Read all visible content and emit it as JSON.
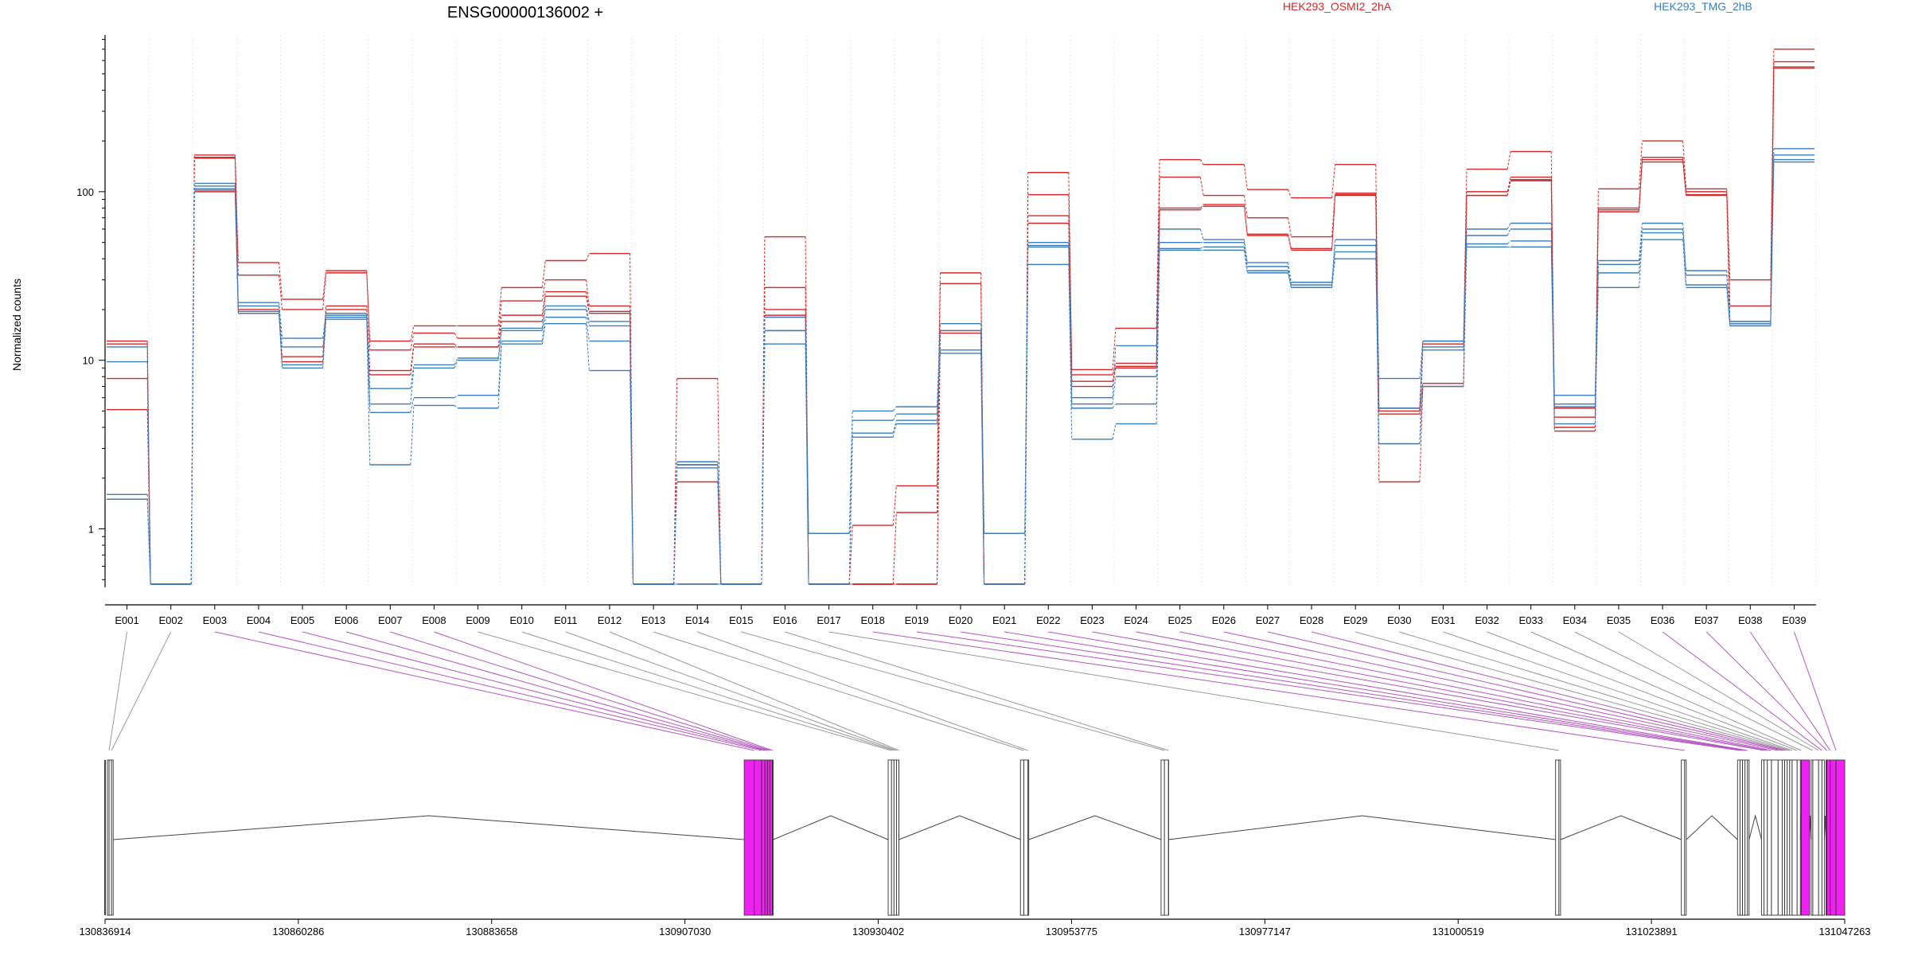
{
  "chart_data": {
    "type": "line",
    "title": "ENSG00000136002 +",
    "ylabel": "Normalized counts",
    "y_scale": "log",
    "ylim": [
      0.45,
      850
    ],
    "y_ticks": [
      {
        "value": 1,
        "label": "1"
      },
      {
        "value": 10,
        "label": "10"
      },
      {
        "value": 100,
        "label": "100"
      }
    ],
    "categories": [
      "E001",
      "E002",
      "E003",
      "E004",
      "E005",
      "E006",
      "E007",
      "E008",
      "E009",
      "E010",
      "E011",
      "E012",
      "E013",
      "E014",
      "E015",
      "E016",
      "E017",
      "E018",
      "E019",
      "E020",
      "E021",
      "E022",
      "E023",
      "E024",
      "E025",
      "E026",
      "E027",
      "E028",
      "E029",
      "E030",
      "E031",
      "E032",
      "E033",
      "E034",
      "E035",
      "E036",
      "E037",
      "E038",
      "E039"
    ],
    "legend": [
      {
        "label": "HEK293_OSMI2_2hA",
        "color": "#d62728"
      },
      {
        "label": "HEK293_TMG_2hB",
        "color": "#3a7dbf"
      }
    ],
    "series": [
      {
        "group": 0,
        "color": "#d62728",
        "values": [
          13,
          0.47,
          165,
          38,
          23,
          34,
          13,
          16,
          16,
          27,
          39,
          43,
          0.47,
          7.8,
          0.47,
          54,
          0.47,
          1.05,
          1.8,
          33,
          0.47,
          130,
          8.8,
          15.5,
          155,
          145,
          103,
          92,
          145,
          5.2,
          13,
          136,
          173,
          5.2,
          104,
          200,
          104,
          30,
          700
        ]
      },
      {
        "group": 0,
        "color": "#d62728",
        "values": [
          12.5,
          0.47,
          160,
          32,
          20,
          33,
          11.5,
          14.5,
          13.5,
          22.5,
          30,
          21,
          0.47,
          2.4,
          0.47,
          27,
          0.47,
          0.47,
          1.25,
          28.5,
          0.47,
          96,
          8.2,
          9.6,
          122,
          95,
          70,
          54,
          98,
          5.0,
          12.5,
          100,
          122,
          4.6,
          80,
          160,
          100,
          21,
          590
        ]
      },
      {
        "group": 0,
        "color": "#d62728",
        "values": [
          7.8,
          0.47,
          158,
          20,
          10.5,
          21,
          8.7,
          12.5,
          12,
          18.5,
          25.5,
          19.5,
          0.47,
          1.9,
          0.47,
          20,
          0.47,
          0.47,
          0.47,
          15,
          0.47,
          72,
          7.5,
          9.2,
          80,
          84,
          56,
          46,
          96,
          4.8,
          7.3,
          95,
          118,
          4.0,
          78,
          155,
          96,
          17,
          550
        ]
      },
      {
        "group": 0,
        "color": "#d62728",
        "values": [
          5.1,
          0.47,
          100,
          19,
          9.8,
          20,
          8.2,
          12,
          12,
          17,
          24,
          19,
          0.47,
          0.47,
          0.47,
          18.5,
          0.47,
          0.47,
          0.47,
          14.5,
          0.47,
          65,
          7.0,
          9.0,
          78,
          82,
          55,
          45,
          95,
          1.9,
          7.0,
          95,
          116,
          3.8,
          76,
          150,
          95,
          16.5,
          540
        ]
      },
      {
        "group": 1,
        "color": "#3a7dbf",
        "values": [
          12,
          0.47,
          112,
          22,
          13.5,
          19,
          6.8,
          9.4,
          10.3,
          15.5,
          21,
          17,
          0.47,
          2.5,
          0.47,
          18,
          0.94,
          5.0,
          5.3,
          16.5,
          0.94,
          50,
          6.0,
          12.2,
          60,
          52,
          38,
          29,
          52,
          7.8,
          13,
          60,
          65,
          6.2,
          39,
          65,
          34,
          17,
          180
        ]
      },
      {
        "group": 1,
        "color": "#3a7dbf",
        "values": [
          9.8,
          0.47,
          108,
          21,
          12,
          18.5,
          5.5,
          9.0,
          10,
          15,
          20,
          16,
          0.47,
          2.4,
          0.47,
          15,
          0.94,
          4.4,
          4.8,
          15,
          0.94,
          48,
          5.5,
          8.0,
          50,
          50,
          36,
          28,
          48,
          5.2,
          12,
          55,
          60,
          5.5,
          37,
          60,
          32,
          16.5,
          165
        ]
      },
      {
        "group": 1,
        "color": "#3a7dbf",
        "values": [
          1.6,
          0.47,
          104,
          19.5,
          9.4,
          18,
          4.9,
          6.0,
          6.2,
          13,
          18,
          13,
          0.47,
          2.3,
          0.47,
          15,
          0.47,
          3.7,
          4.4,
          11.5,
          0.47,
          47,
          5.2,
          5.5,
          46,
          47,
          34,
          27,
          44,
          3.2,
          11.5,
          49,
          51,
          5.3,
          33,
          57,
          28,
          16,
          155
        ]
      },
      {
        "group": 1,
        "color": "#3a7dbf",
        "values": [
          1.5,
          0.47,
          102,
          19,
          9.0,
          17.5,
          2.4,
          5.4,
          5.2,
          12.5,
          16.5,
          8.7,
          0.47,
          0.47,
          0.47,
          12.5,
          0.47,
          3.5,
          4.2,
          11,
          0.47,
          37,
          3.4,
          4.2,
          45,
          45,
          33,
          27,
          40,
          3.2,
          7.0,
          47,
          47,
          4.2,
          27,
          52,
          27,
          16,
          150
        ]
      }
    ],
    "coordinate_ticks": [
      "130836914",
      "130860286",
      "130883658",
      "130907030",
      "130930402",
      "130953775",
      "130977147",
      "131000519",
      "131023891",
      "131047263"
    ],
    "genome_range": [
      130836914,
      131047263
    ],
    "highlighted_exons": [
      "E003",
      "E004",
      "E005",
      "E006",
      "E007",
      "E008",
      "E018",
      "E019",
      "E020",
      "E021",
      "E022",
      "E023",
      "E024",
      "E025",
      "E026",
      "E027",
      "E028",
      "E036",
      "E037",
      "E038",
      "E039"
    ]
  }
}
